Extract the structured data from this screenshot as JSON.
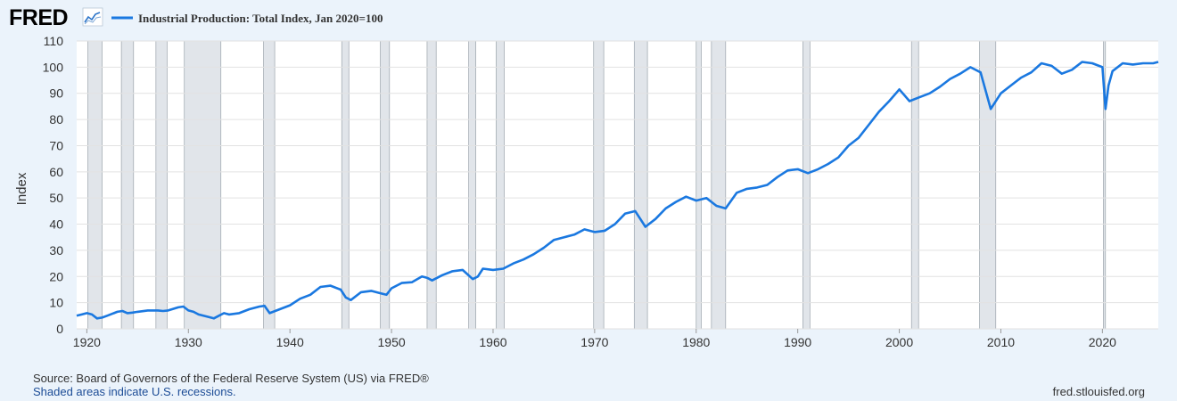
{
  "brand": "FRED",
  "footer": {
    "source": "Source: Board of Governors of the Federal Reserve System (US) via FRED®",
    "note": "Shaded areas indicate U.S. recessions.",
    "site": "fred.stlouisfed.org"
  },
  "colors": {
    "series": "#1a78e0",
    "recession": "#e1e5ea",
    "page_bg": "#ebf3fb",
    "note_link": "#1c4c96"
  },
  "chart_data": {
    "type": "line",
    "title": "",
    "xlabel": "",
    "ylabel": "Index",
    "xlim": [
      1919,
      2025.5
    ],
    "ylim": [
      0,
      110
    ],
    "y_ticks": [
      0,
      10,
      20,
      30,
      40,
      50,
      60,
      70,
      80,
      90,
      100,
      110
    ],
    "x_ticks": [
      1920,
      1930,
      1940,
      1950,
      1960,
      1970,
      1980,
      1990,
      2000,
      2010,
      2020
    ],
    "grid": true,
    "legend_position": "top-left",
    "series": [
      {
        "name": "Industrial Production: Total Index, Jan 2020=100",
        "x": [
          1919,
          1919.5,
          1920,
          1920.5,
          1921,
          1921.5,
          1922,
          1923,
          1923.5,
          1924,
          1924.5,
          1925,
          1926,
          1927,
          1927.5,
          1928,
          1929,
          1929.5,
          1930,
          1930.5,
          1931,
          1932,
          1932.5,
          1933,
          1933.5,
          1934,
          1935,
          1936,
          1937,
          1937.5,
          1938,
          1939,
          1940,
          1941,
          1942,
          1943,
          1944,
          1945,
          1945.5,
          1946,
          1947,
          1948,
          1949,
          1949.5,
          1950,
          1951,
          1952,
          1953,
          1953.5,
          1954,
          1955,
          1956,
          1957,
          1958,
          1958.5,
          1959,
          1960,
          1961,
          1962,
          1963,
          1964,
          1965,
          1966,
          1967,
          1968,
          1969,
          1970,
          1971,
          1972,
          1973,
          1974,
          1975,
          1976,
          1977,
          1978,
          1979,
          1980,
          1981,
          1982,
          1982.9,
          1984,
          1985,
          1986,
          1987,
          1988,
          1989,
          1990,
          1991,
          1992,
          1993,
          1994,
          1995,
          1996,
          1997,
          1998,
          1999,
          2000,
          2001,
          2002,
          2003,
          2004,
          2005,
          2006,
          2007,
          2008,
          2009,
          2010,
          2011,
          2012,
          2013,
          2014,
          2015,
          2016,
          2017,
          2018,
          2019,
          2020,
          2020.3,
          2020.6,
          2021,
          2022,
          2023,
          2024,
          2025,
          2025.5
        ],
        "values": [
          5,
          5.5,
          6,
          5.5,
          4,
          4.3,
          5,
          6.5,
          6.8,
          6,
          6.2,
          6.5,
          7,
          7,
          6.8,
          7,
          8.2,
          8.5,
          7,
          6.5,
          5.5,
          4.5,
          4,
          5,
          6,
          5.5,
          6,
          7.5,
          8.5,
          8.8,
          6,
          7.5,
          9,
          11.5,
          13,
          16,
          16.5,
          15,
          12,
          11,
          14,
          14.5,
          13.5,
          13,
          15.5,
          17.5,
          17.8,
          20,
          19.5,
          18.5,
          20.5,
          22,
          22.5,
          19,
          20,
          23,
          22.5,
          23,
          25,
          26.5,
          28.5,
          31,
          34,
          35,
          36,
          38,
          37,
          37.5,
          40,
          44,
          45,
          39,
          42,
          46,
          48.5,
          50.5,
          49,
          50,
          47,
          46,
          52,
          53.5,
          54,
          55,
          58,
          60.5,
          61,
          59.5,
          61,
          63,
          65.5,
          70,
          73,
          78,
          83,
          87,
          91.5,
          87,
          88.5,
          90,
          92.5,
          95.5,
          97.5,
          100,
          98,
          84,
          90,
          93,
          96,
          98,
          101.5,
          100.5,
          97.5,
          99,
          102,
          101.5,
          100,
          84,
          93,
          98.5,
          101.5,
          101,
          101.5,
          101.5,
          102
        ]
      }
    ],
    "recessions": [
      [
        1920.1,
        1921.5
      ],
      [
        1923.4,
        1924.6
      ],
      [
        1926.8,
        1927.9
      ],
      [
        1929.6,
        1933.2
      ],
      [
        1937.4,
        1938.5
      ],
      [
        1945.1,
        1945.8
      ],
      [
        1948.9,
        1949.8
      ],
      [
        1953.5,
        1954.4
      ],
      [
        1957.6,
        1958.3
      ],
      [
        1960.3,
        1961.1
      ],
      [
        1969.9,
        1970.9
      ],
      [
        1973.9,
        1975.2
      ],
      [
        1980.0,
        1980.5
      ],
      [
        1981.5,
        1982.9
      ],
      [
        1990.5,
        1991.2
      ],
      [
        2001.2,
        2001.9
      ],
      [
        2007.9,
        2009.5
      ],
      [
        2020.1,
        2020.3
      ]
    ]
  }
}
